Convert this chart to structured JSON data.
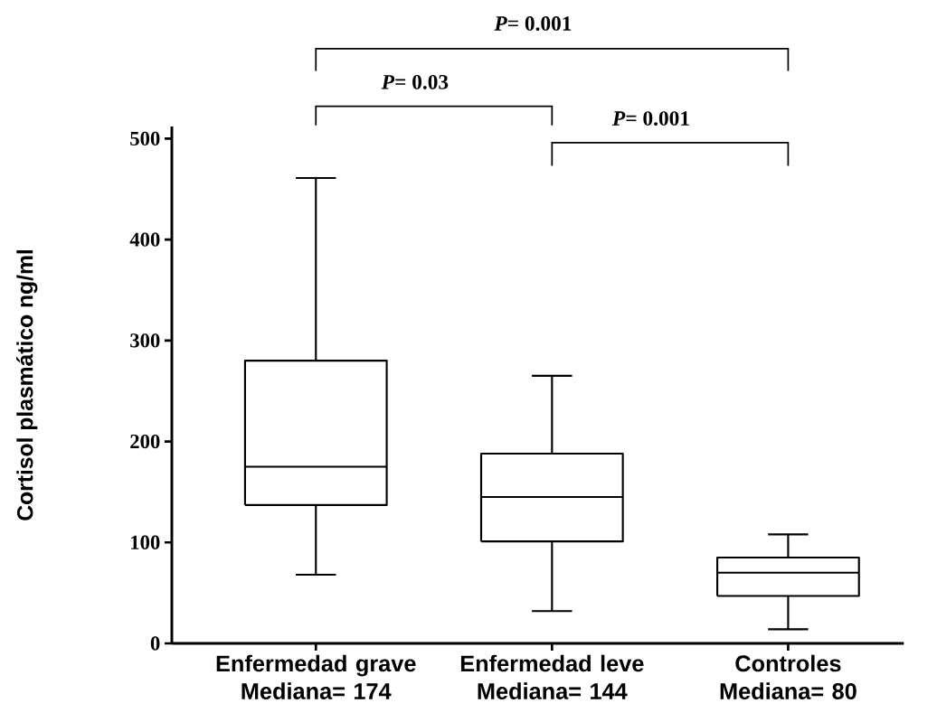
{
  "chart_data": {
    "type": "box",
    "ylabel": "Cortisol plasmático ng/ml",
    "categories": [
      "Enfermedad grave Mediana= 174",
      "Enfermedad leve Mediana= 144",
      "Controles Mediana= 80"
    ],
    "boxes": [
      {
        "low": 68,
        "q1": 137,
        "median": 175,
        "q3": 280,
        "high": 461
      },
      {
        "low": 32,
        "q1": 101,
        "median": 145,
        "q3": 188,
        "high": 265
      },
      {
        "low": 14,
        "q1": 47,
        "median": 70,
        "q3": 85,
        "high": 108
      }
    ],
    "ylim": [
      0,
      512
    ],
    "yticks": [
      0,
      100,
      200,
      300,
      400,
      500
    ],
    "grid": false,
    "annotations": [
      "*P*= 0.001",
      "*P*= 0.03",
      "*P*= 0.001"
    ]
  }
}
